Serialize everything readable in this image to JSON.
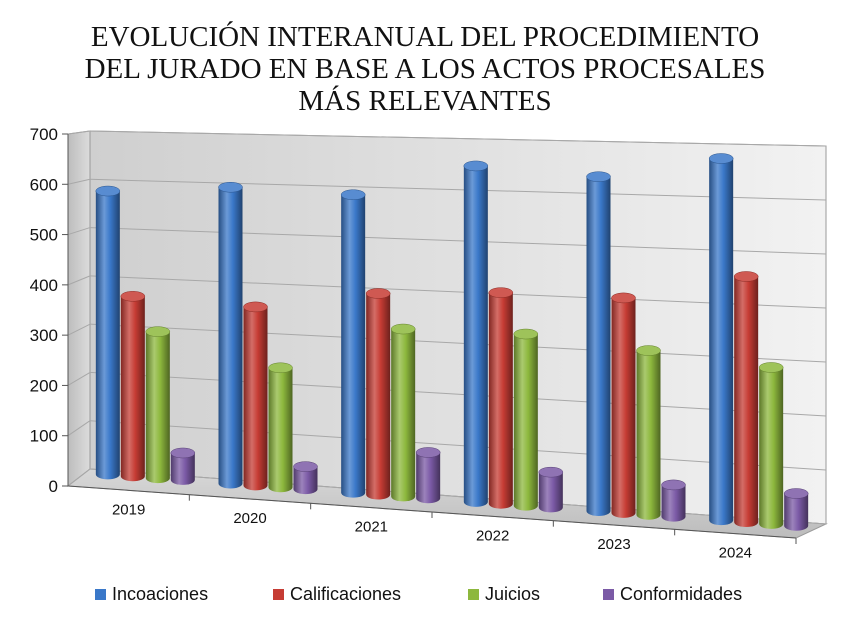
{
  "chart_data": {
    "type": "bar",
    "title_lines": [
      "EVOLUCIÓN INTERANUAL DEL PROCEDIMIENTO",
      "DEL JURADO EN BASE A LOS ACTOS PROCESALES",
      "MÁS RELEVANTES"
    ],
    "categories": [
      "2019",
      "2020",
      "2021",
      "2022",
      "2023",
      "2024"
    ],
    "y_ticks": [
      "0",
      "100",
      "200",
      "300",
      "400",
      "500",
      "600",
      "700"
    ],
    "ylim": [
      0,
      700
    ],
    "grid": true,
    "legend_position": "bottom",
    "series": [
      {
        "name": "Incoaciones",
        "color": "#3A78C9",
        "values": [
          585,
          600,
          592,
          655,
          640,
          680
        ]
      },
      {
        "name": "Calificaciones",
        "color": "#C63C34",
        "values": [
          370,
          360,
          398,
          410,
          410,
          460
        ]
      },
      {
        "name": "Juicios",
        "color": "#8DB83D",
        "values": [
          300,
          240,
          330,
          332,
          312,
          292
        ]
      },
      {
        "name": "Conformidades",
        "color": "#7B5AA6",
        "values": [
          55,
          45,
          90,
          68,
          60,
          60
        ]
      }
    ]
  }
}
